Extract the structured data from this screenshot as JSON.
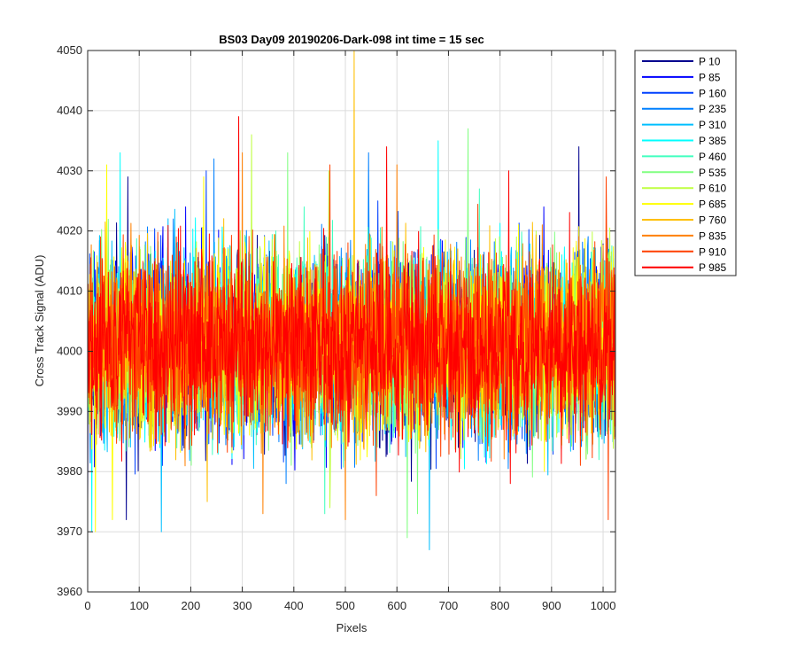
{
  "chart_data": {
    "type": "line",
    "title": "BS03 Day09 20190206-Dark-098 int time = 15 sec",
    "xlabel": "Pixels",
    "ylabel": "Cross Track Signal (ADU)",
    "xlim": [
      0,
      1024
    ],
    "ylim": [
      3960,
      4050
    ],
    "xticks": [
      0,
      100,
      200,
      300,
      400,
      500,
      600,
      700,
      800,
      900,
      1000
    ],
    "yticks": [
      3960,
      3970,
      3980,
      3990,
      4000,
      4010,
      4020,
      4030,
      4040,
      4050
    ],
    "x_tick_labels": [
      "0",
      "100",
      "200",
      "300",
      "400",
      "500",
      "600",
      "700",
      "800",
      "900",
      "1000"
    ],
    "y_tick_labels": [
      "3960",
      "3970",
      "3980",
      "3990",
      "4000",
      "4010",
      "4020",
      "4030",
      "4040",
      "4050"
    ],
    "grid": true,
    "legend_position": "outside-top-right",
    "noise_center": 4001,
    "series": [
      {
        "name": "P 10",
        "color": "#00008f",
        "peaks": [
          [
            78,
            4029
          ],
          [
            953,
            4034
          ]
        ],
        "troughs": [
          [
            75,
            3972
          ]
        ]
      },
      {
        "name": "P 85",
        "color": "#0000ff",
        "peaks": [
          [
            190,
            4024
          ],
          [
            885,
            4024
          ]
        ],
        "troughs": [
          [
            0,
            3975
          ]
        ]
      },
      {
        "name": "P 160",
        "color": "#0040ff",
        "peaks": [
          [
            230,
            4030
          ],
          [
            563,
            4025
          ]
        ],
        "troughs": [
          [
            145,
            3981
          ]
        ]
      },
      {
        "name": "P 235",
        "color": "#0080ff",
        "peaks": [
          [
            245,
            4032
          ],
          [
            545,
            4033
          ]
        ],
        "troughs": [
          [
            385,
            3978
          ]
        ]
      },
      {
        "name": "P 310",
        "color": "#00bfff",
        "peaks": [
          [
            143,
            4032
          ],
          [
            663,
            4025
          ]
        ],
        "troughs": [
          [
            143,
            3970
          ],
          [
            663,
            3967
          ]
        ]
      },
      {
        "name": "P 385",
        "color": "#00ffff",
        "peaks": [
          [
            63,
            4033
          ],
          [
            680,
            4035
          ]
        ],
        "troughs": [
          [
            8,
            3970
          ]
        ]
      },
      {
        "name": "P 460",
        "color": "#40ffbf",
        "peaks": [
          [
            420,
            4024
          ],
          [
            760,
            4027
          ]
        ],
        "troughs": [
          [
            460,
            3973
          ]
        ]
      },
      {
        "name": "P 535",
        "color": "#80ff80",
        "peaks": [
          [
            388,
            4033
          ],
          [
            738,
            4037
          ]
        ],
        "troughs": [
          [
            620,
            3969
          ],
          [
            640,
            3973
          ]
        ]
      },
      {
        "name": "P 610",
        "color": "#bfff40",
        "peaks": [
          [
            318,
            4036
          ],
          [
            468,
            4030
          ]
        ],
        "troughs": [
          [
            470,
            3974
          ]
        ]
      },
      {
        "name": "P 685",
        "color": "#ffff00",
        "peaks": [
          [
            37,
            4031
          ],
          [
            225,
            4029
          ]
        ],
        "troughs": [
          [
            15,
            3970
          ],
          [
            48,
            3972
          ]
        ]
      },
      {
        "name": "P 760",
        "color": "#ffbf00",
        "peaks": [
          [
            517,
            4050
          ]
        ],
        "troughs": [
          [
            232,
            3975
          ]
        ]
      },
      {
        "name": "P 835",
        "color": "#ff8000",
        "peaks": [
          [
            300,
            4033
          ],
          [
            600,
            4031
          ]
        ],
        "troughs": [
          [
            340,
            3973
          ],
          [
            500,
            3972
          ]
        ]
      },
      {
        "name": "P 910",
        "color": "#ff4000",
        "peaks": [
          [
            470,
            4031
          ],
          [
            1006,
            4029
          ]
        ],
        "troughs": [
          [
            560,
            3976
          ],
          [
            1010,
            3972
          ]
        ]
      },
      {
        "name": "P 985",
        "color": "#ff0000",
        "peaks": [
          [
            293,
            4039
          ],
          [
            580,
            4034
          ],
          [
            817,
            4030
          ]
        ],
        "troughs": [
          [
            820,
            3978
          ]
        ]
      }
    ]
  }
}
